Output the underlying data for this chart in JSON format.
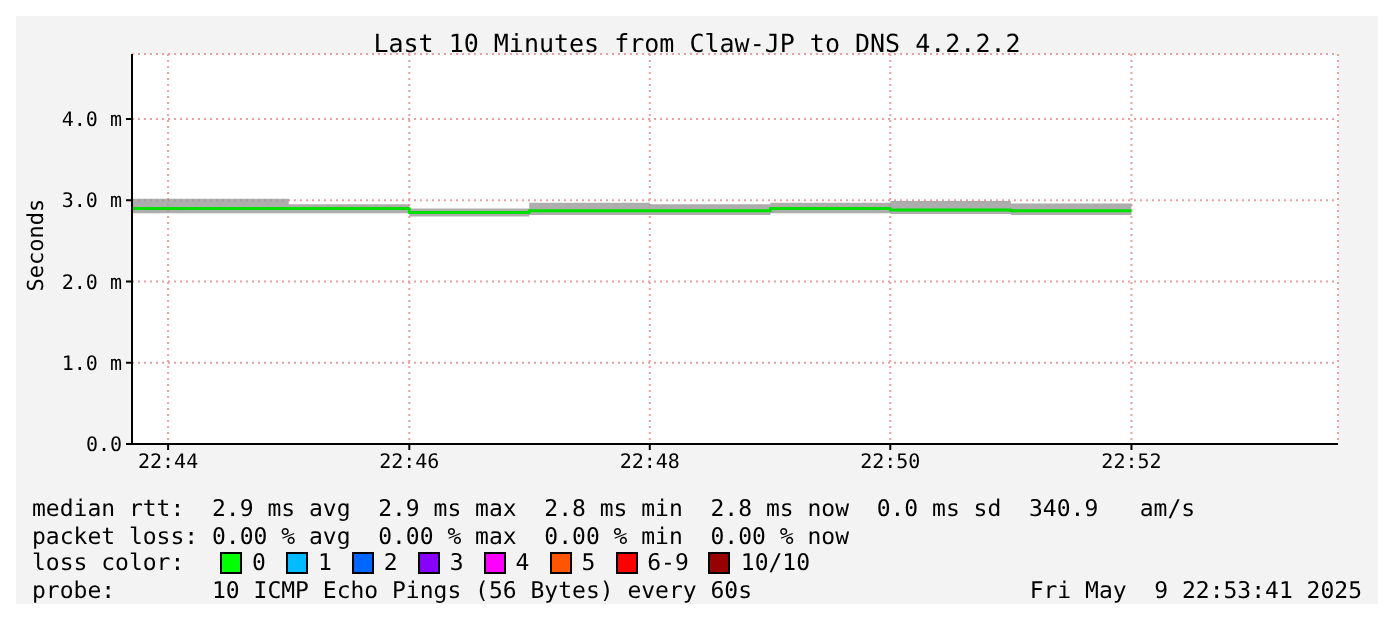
{
  "chart_data": {
    "type": "step",
    "title": "Last 10 Minutes from Claw-JP to DNS 4.2.2.2",
    "ylabel": "Seconds",
    "x": [
      22.7283,
      22.75,
      22.7667,
      22.7833,
      22.8,
      22.8167,
      22.8333,
      22.85,
      22.8667
    ],
    "series": [
      {
        "color": "#00e000",
        "values": [
          2.9,
          2.9,
          2.85,
          2.87,
          2.87,
          2.9,
          2.88,
          2.87,
          2.87
        ],
        "lower": [
          2.84,
          2.84,
          2.8,
          2.82,
          2.82,
          2.84,
          2.83,
          2.82,
          2.82
        ],
        "upper": [
          3.02,
          2.95,
          2.9,
          2.97,
          2.95,
          2.97,
          2.99,
          2.96,
          2.96
        ]
      }
    ],
    "xlim": [
      22.7283,
      22.8953
    ],
    "xticks": [
      {
        "value": 22.7333,
        "label": "22:44"
      },
      {
        "value": 22.7667,
        "label": "22:46"
      },
      {
        "value": 22.8,
        "label": "22:48"
      },
      {
        "value": 22.8333,
        "label": "22:50"
      },
      {
        "value": 22.8667,
        "label": "22:52"
      }
    ],
    "ylim": [
      0,
      4.8
    ],
    "yticks": [
      {
        "value": 0,
        "label": "0.0"
      },
      {
        "value": 1,
        "label": "1.0 m"
      },
      {
        "value": 2,
        "label": "2.0 m"
      },
      {
        "value": 3,
        "label": "3.0 m"
      },
      {
        "value": 4,
        "label": "4.0 m"
      }
    ],
    "grid": true,
    "annotations": [
      "median rtt:  2.9 ms avg  2.9 ms max  2.8 ms min  2.8 ms now  0.0 ms sd  340.9   am/s",
      "packet loss: 0.00 % avg  0.00 % max  0.00 % min  0.00 % now",
      "loss color:",
      "0",
      "1",
      "2",
      "3",
      "4",
      "5",
      "6-9",
      "10/10",
      "probe:       10 ICMP Echo Pings (56 Bytes) every 60s",
      "Fri May  9 22:53:41 2025"
    ]
  }
}
